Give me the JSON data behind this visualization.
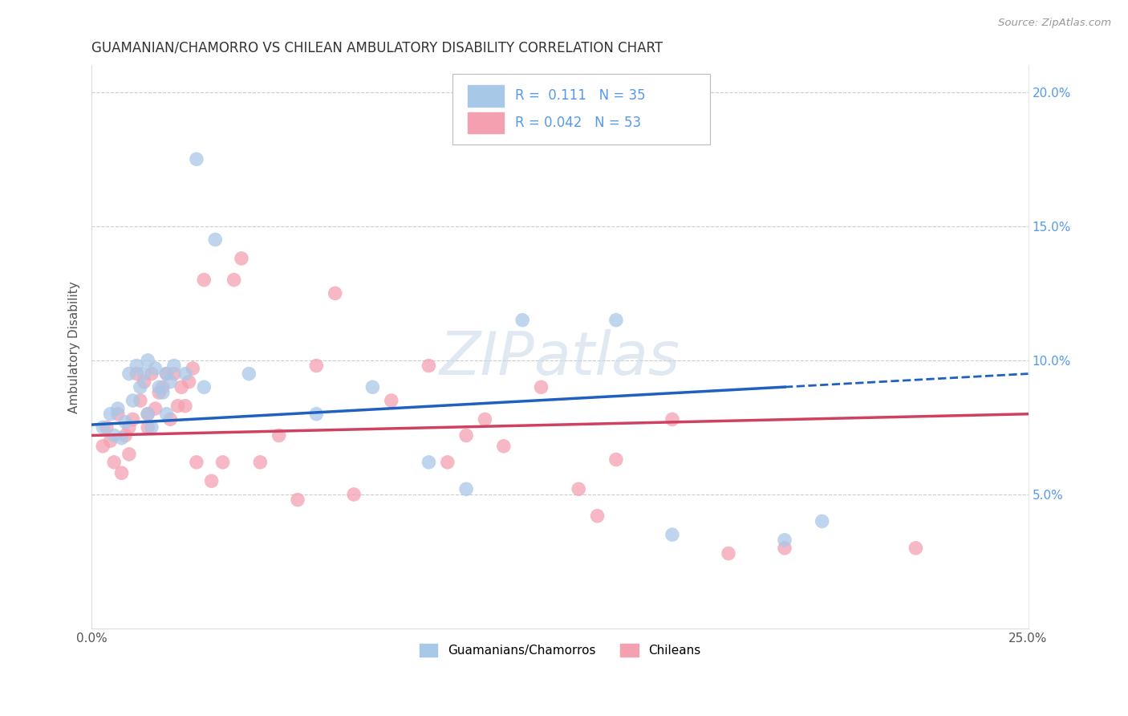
{
  "title": "GUAMANIAN/CHAMORRO VS CHILEAN AMBULATORY DISABILITY CORRELATION CHART",
  "source": "Source: ZipAtlas.com",
  "ylabel": "Ambulatory Disability",
  "xlim": [
    0.0,
    0.25
  ],
  "ylim": [
    0.0,
    0.21
  ],
  "xticks": [
    0.0,
    0.05,
    0.1,
    0.15,
    0.2,
    0.25
  ],
  "xtick_labels": [
    "0.0%",
    "",
    "",
    "",
    "",
    "25.0%"
  ],
  "yticks_right": [
    0.05,
    0.1,
    0.15,
    0.2
  ],
  "ytick_right_labels": [
    "5.0%",
    "10.0%",
    "15.0%",
    "20.0%"
  ],
  "legend_labels": [
    "Guamanians/Chamorros",
    "Chileans"
  ],
  "r_blue": "0.111",
  "n_blue": "35",
  "r_pink": "0.042",
  "n_pink": "53",
  "blue_color": "#a8c8e8",
  "pink_color": "#f4a0b0",
  "blue_line_color": "#2060c0",
  "pink_line_color": "#d04060",
  "right_axis_color": "#5599ee",
  "background_color": "#ffffff",
  "watermark": "ZIPatlas",
  "blue_scatter_x": [
    0.003,
    0.005,
    0.006,
    0.007,
    0.008,
    0.009,
    0.01,
    0.011,
    0.012,
    0.013,
    0.014,
    0.015,
    0.015,
    0.016,
    0.017,
    0.018,
    0.019,
    0.02,
    0.02,
    0.021,
    0.022,
    0.025,
    0.028,
    0.03,
    0.033,
    0.042,
    0.06,
    0.075,
    0.09,
    0.1,
    0.115,
    0.14,
    0.155,
    0.185,
    0.195
  ],
  "blue_scatter_y": [
    0.075,
    0.08,
    0.072,
    0.082,
    0.071,
    0.077,
    0.095,
    0.085,
    0.098,
    0.09,
    0.095,
    0.08,
    0.1,
    0.075,
    0.097,
    0.09,
    0.088,
    0.095,
    0.08,
    0.092,
    0.098,
    0.095,
    0.175,
    0.09,
    0.145,
    0.095,
    0.08,
    0.09,
    0.062,
    0.052,
    0.115,
    0.115,
    0.035,
    0.033,
    0.04
  ],
  "pink_scatter_x": [
    0.003,
    0.004,
    0.005,
    0.006,
    0.007,
    0.008,
    0.009,
    0.01,
    0.01,
    0.011,
    0.012,
    0.013,
    0.014,
    0.015,
    0.015,
    0.016,
    0.017,
    0.018,
    0.019,
    0.02,
    0.021,
    0.022,
    0.023,
    0.024,
    0.025,
    0.026,
    0.027,
    0.028,
    0.03,
    0.032,
    0.035,
    0.038,
    0.04,
    0.045,
    0.05,
    0.055,
    0.06,
    0.065,
    0.07,
    0.08,
    0.09,
    0.095,
    0.1,
    0.105,
    0.11,
    0.12,
    0.13,
    0.135,
    0.14,
    0.155,
    0.17,
    0.185,
    0.22
  ],
  "pink_scatter_y": [
    0.068,
    0.075,
    0.07,
    0.062,
    0.08,
    0.058,
    0.072,
    0.075,
    0.065,
    0.078,
    0.095,
    0.085,
    0.092,
    0.08,
    0.075,
    0.095,
    0.082,
    0.088,
    0.09,
    0.095,
    0.078,
    0.095,
    0.083,
    0.09,
    0.083,
    0.092,
    0.097,
    0.062,
    0.13,
    0.055,
    0.062,
    0.13,
    0.138,
    0.062,
    0.072,
    0.048,
    0.098,
    0.125,
    0.05,
    0.085,
    0.098,
    0.062,
    0.072,
    0.078,
    0.068,
    0.09,
    0.052,
    0.042,
    0.063,
    0.078,
    0.028,
    0.03,
    0.03
  ],
  "blue_trendline_start_x": 0.0,
  "blue_trendline_solid_end_x": 0.185,
  "blue_trendline_end_x": 0.25,
  "blue_trendline_start_y": 0.076,
  "blue_trendline_end_y": 0.095,
  "pink_trendline_start_x": 0.0,
  "pink_trendline_end_x": 0.25,
  "pink_trendline_start_y": 0.072,
  "pink_trendline_end_y": 0.08
}
